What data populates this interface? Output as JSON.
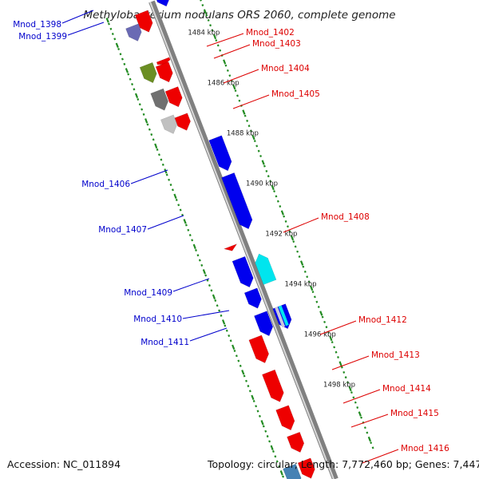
{
  "title": "Methylobacterium nodulans ORS 2060, complete genome",
  "footer": {
    "accession": "Accession: NC_011894",
    "summary": "Topology: circular; Length: 7,772,460 bp; Genes: 7,447"
  },
  "colors": {
    "forward": "#0000ee",
    "reverse": "#ee0000",
    "cyan": "#00e5ee",
    "olive": "#6b8e23",
    "gray_dark": "#707070",
    "gray_light": "#c0c0c0",
    "steel": "#4682b4",
    "tick": "#228b22",
    "backbone": "#808080"
  },
  "ticks": [
    {
      "kb": 1484,
      "label": "1484 kbp"
    },
    {
      "kb": 1486,
      "label": "1486 kbp"
    },
    {
      "kb": 1488,
      "label": "1488 kbp"
    },
    {
      "kb": 1490,
      "label": "1490 kbp"
    },
    {
      "kb": 1492,
      "label": "1492 kbp"
    },
    {
      "kb": 1494,
      "label": "1494 kbp"
    },
    {
      "kb": 1496,
      "label": "1496 kbp"
    },
    {
      "kb": 1498,
      "label": "1498 kbp"
    }
  ],
  "gene_labels": {
    "left": [
      "Mnod_1398",
      "Mnod_1399",
      "Mnod_1406",
      "Mnod_1407",
      "Mnod_1409",
      "Mnod_1410",
      "Mnod_1411"
    ],
    "right": [
      "Mnod_1402",
      "Mnod_1403",
      "Mnod_1404",
      "Mnod_1405",
      "Mnod_1408",
      "Mnod_1412",
      "Mnod_1413",
      "Mnod_1414",
      "Mnod_1415",
      "Mnod_1416"
    ]
  }
}
